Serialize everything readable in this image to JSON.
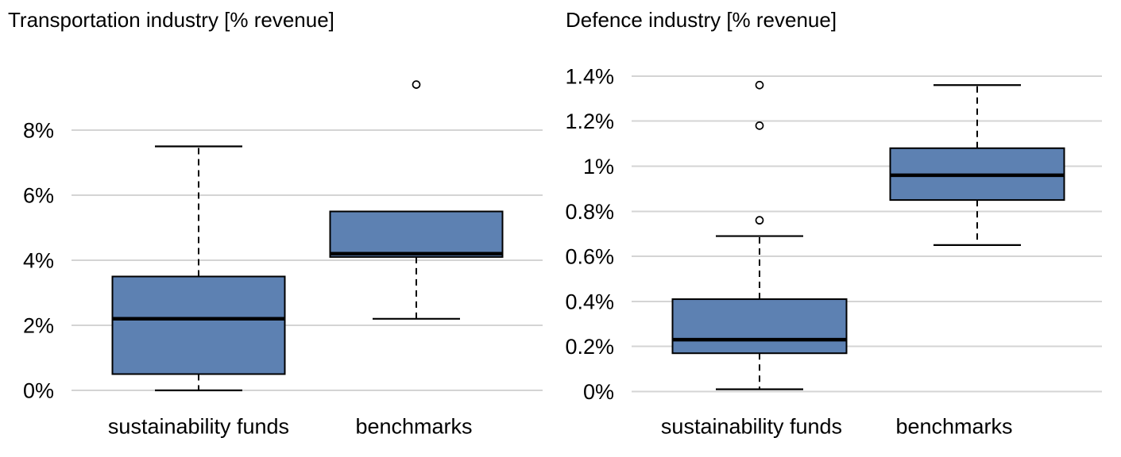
{
  "colors": {
    "box_fill": "#5d81b2",
    "box_border": "#000000",
    "median": "#000000",
    "whisker": "#000000",
    "outlier_stroke": "#000000",
    "gridline": "#d4d4d4",
    "text": "#000000",
    "background": "#ffffff"
  },
  "chart_data": [
    {
      "type": "boxplot",
      "title": "Transportation industry [% revenue]",
      "categories": [
        "sustainability funds",
        "benchmarks"
      ],
      "ylabel": "",
      "xlabel": "",
      "ylim": [
        0,
        9.9
      ],
      "grid": true,
      "y_ticks": [
        {
          "label": "0%",
          "value": 0
        },
        {
          "label": "2%",
          "value": 2
        },
        {
          "label": "4%",
          "value": 4
        },
        {
          "label": "6%",
          "value": 6
        },
        {
          "label": "8%",
          "value": 8
        }
      ],
      "series": [
        {
          "category": "sustainability funds",
          "whisker_low": 0.0,
          "q1": 0.5,
          "median": 2.2,
          "q3": 3.5,
          "whisker_high": 7.5,
          "outliers": []
        },
        {
          "category": "benchmarks",
          "whisker_low": 2.2,
          "q1": 4.1,
          "median": 4.2,
          "q3": 5.5,
          "whisker_high": 5.5,
          "outliers": [
            9.4
          ]
        }
      ]
    },
    {
      "type": "boxplot",
      "title": "Defence industry [% revenue]",
      "categories": [
        "sustainability funds",
        "benchmarks"
      ],
      "ylabel": "",
      "xlabel": "",
      "ylim": [
        0,
        1.45
      ],
      "grid": true,
      "y_ticks": [
        {
          "label": "0%",
          "value": 0
        },
        {
          "label": "0.2%",
          "value": 0.2
        },
        {
          "label": "0.4%",
          "value": 0.4
        },
        {
          "label": "0.6%",
          "value": 0.6
        },
        {
          "label": "0.8%",
          "value": 0.8
        },
        {
          "label": "1%",
          "value": 1.0
        },
        {
          "label": "1.2%",
          "value": 1.2
        },
        {
          "label": "1.4%",
          "value": 1.4
        }
      ],
      "series": [
        {
          "category": "sustainability funds",
          "whisker_low": 0.01,
          "q1": 0.17,
          "median": 0.23,
          "q3": 0.41,
          "whisker_high": 0.69,
          "outliers": [
            0.76,
            1.18,
            1.36
          ]
        },
        {
          "category": "benchmarks",
          "whisker_low": 0.65,
          "q1": 0.85,
          "median": 0.96,
          "q3": 1.08,
          "whisker_high": 1.36,
          "outliers": []
        }
      ]
    }
  ]
}
